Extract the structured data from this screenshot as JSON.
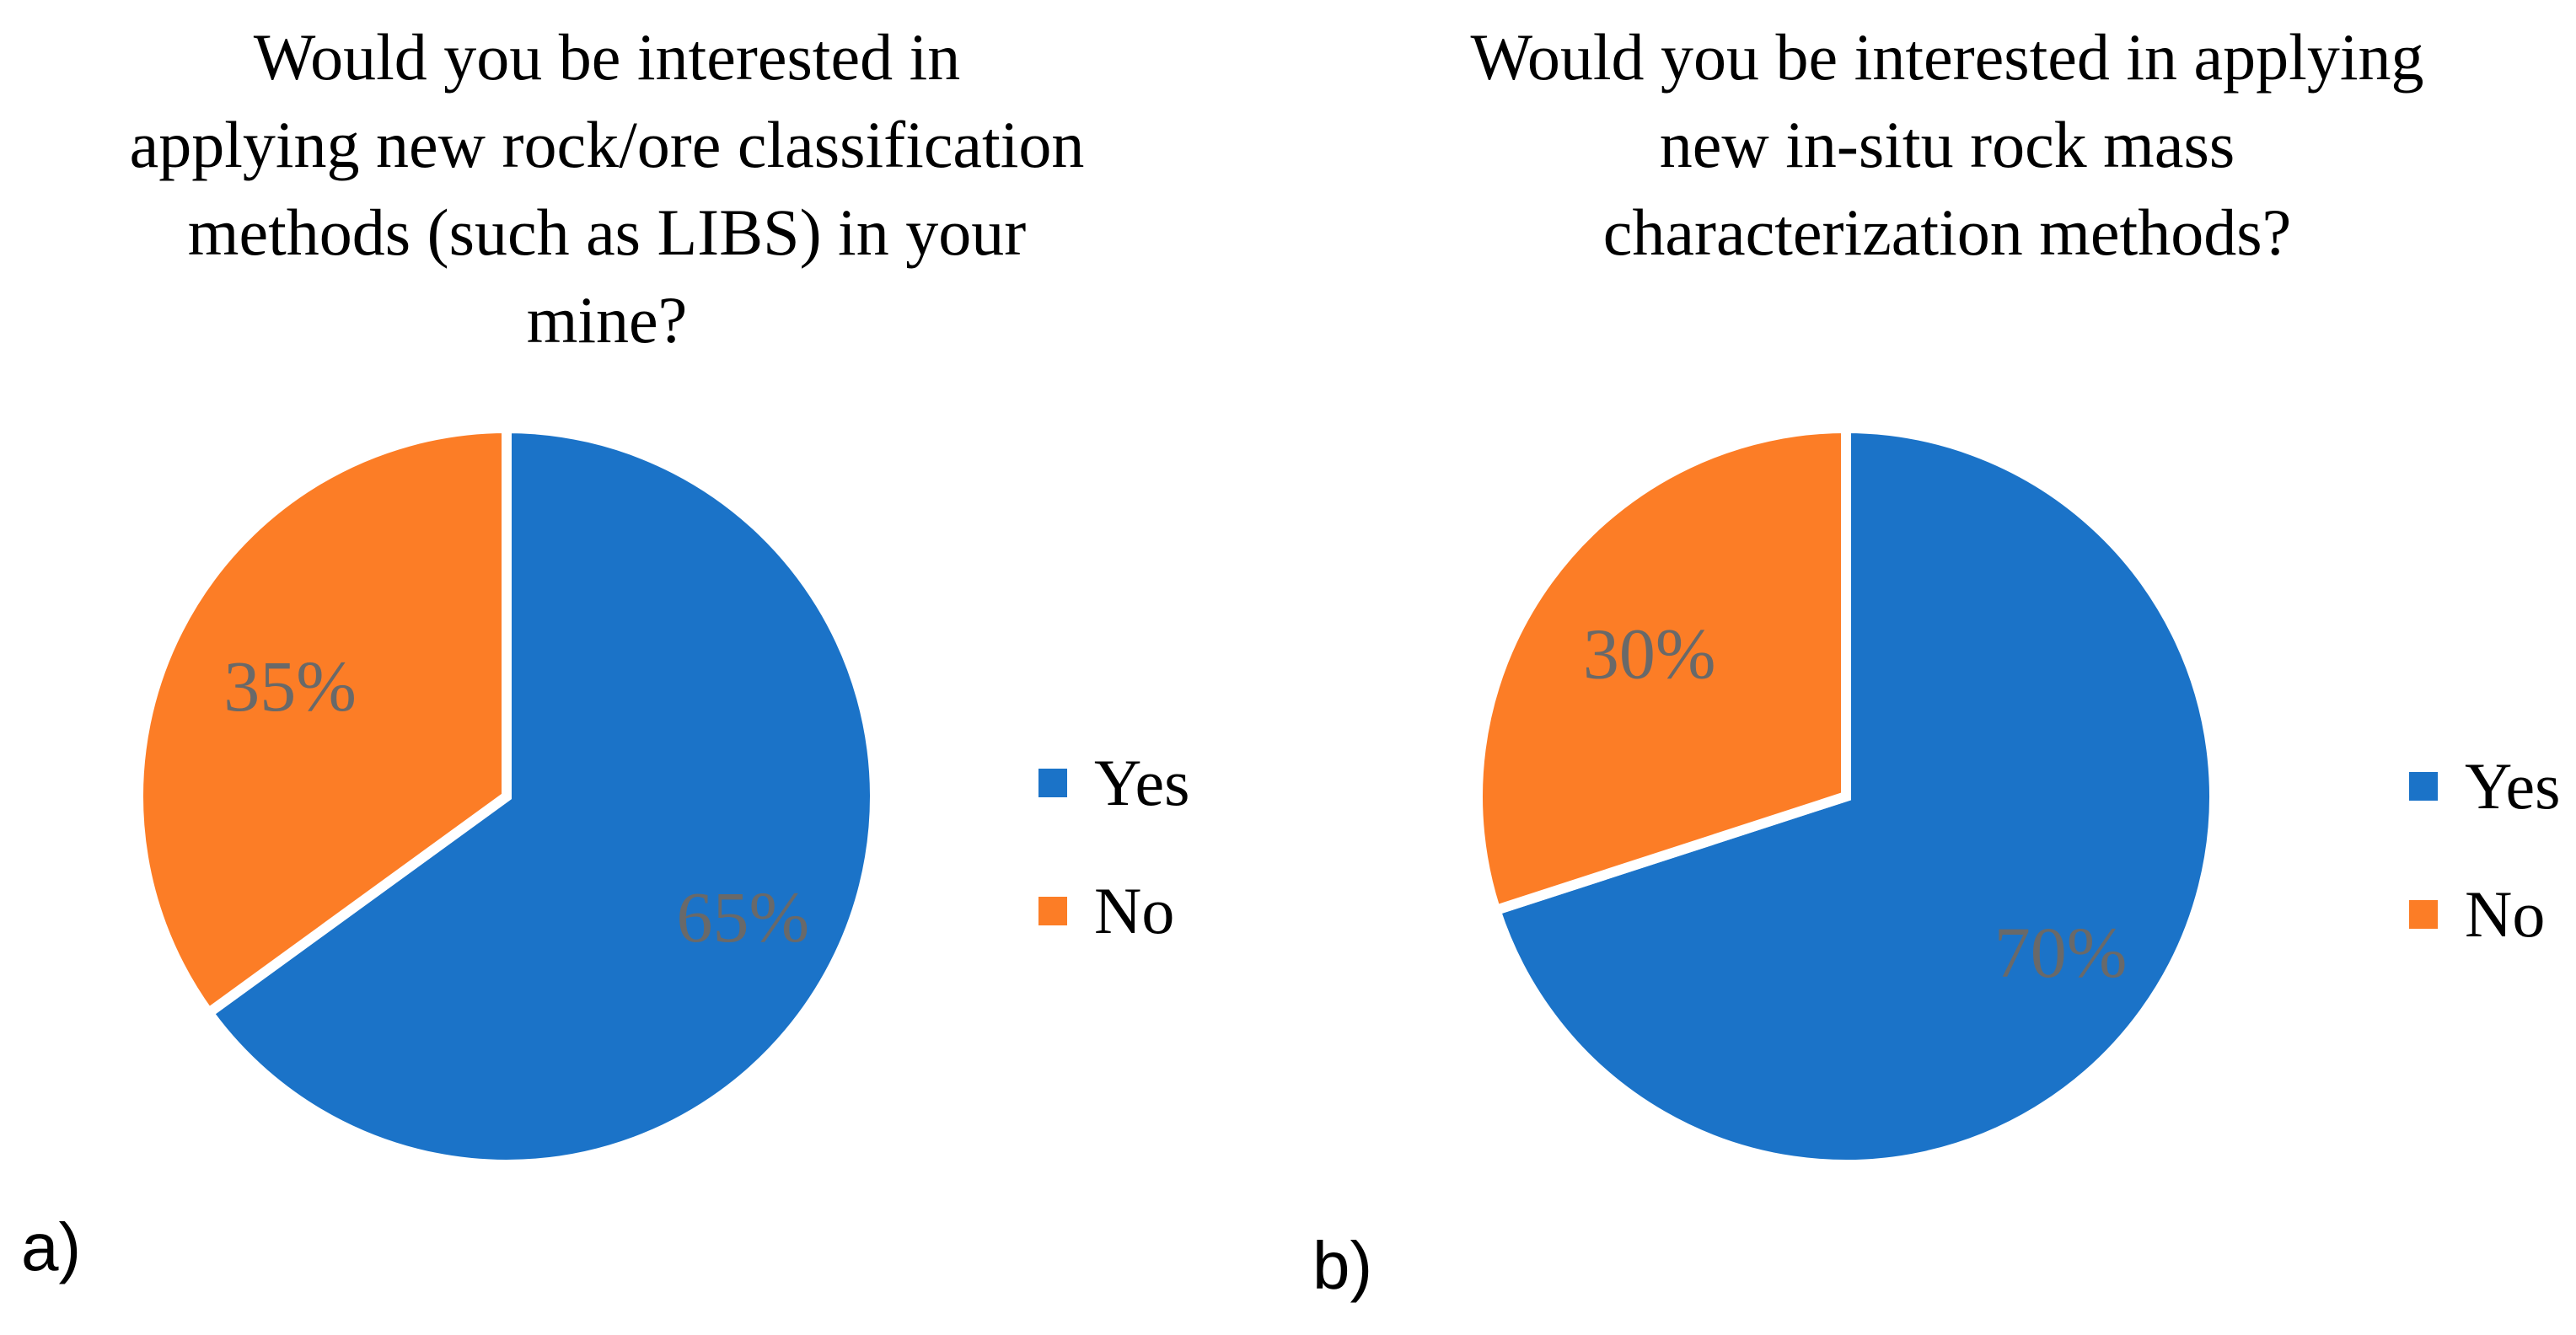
{
  "panels": {
    "a": "a)",
    "b": "b)"
  },
  "colors": {
    "yes_blue": "#1B73C8",
    "no_orange": "#FC7D26",
    "data_label_gray": "#696969",
    "slice_border_white": "#ffffff",
    "title_black": "#000000"
  },
  "legends": [
    {
      "position": "right",
      "items": [
        {
          "label": "Yes",
          "color": "#1B73C8"
        },
        {
          "label": "No",
          "color": "#FC7D26"
        }
      ]
    },
    {
      "position": "right",
      "items": [
        {
          "label": "Yes",
          "color": "#1B73C8"
        },
        {
          "label": "No",
          "color": "#FC7D26"
        }
      ]
    }
  ],
  "chart_data": [
    {
      "type": "pie",
      "title": "Would you be interested in applying new rock/ore classification methods (such as LIBS) in your mine?",
      "title_lines": [
        "Would you be interested in",
        "applying new rock/ore classification",
        "methods (such as LIBS) in your",
        "mine?"
      ],
      "categories": [
        "Yes",
        "No"
      ],
      "values": [
        65,
        35
      ],
      "labels": [
        "65%",
        "35%"
      ],
      "colors": [
        "#1B73C8",
        "#FC7D26"
      ],
      "label_color": "#696969",
      "label_radius": [
        0.72,
        0.66
      ],
      "start_angle_deg": 0,
      "direction": "clockwise",
      "legend_position": "right",
      "panel": "a)"
    },
    {
      "type": "pie",
      "title": "Would you be interested in applying new in-situ rock mass characterization methods?",
      "title_lines": [
        "Would you be interested in applying",
        "new in-situ rock mass",
        "characterization methods?"
      ],
      "categories": [
        "Yes",
        "No"
      ],
      "values": [
        70,
        30
      ],
      "labels": [
        "70%",
        "30%"
      ],
      "colors": [
        "#1B73C8",
        "#FC7D26"
      ],
      "label_color": "#696969",
      "label_radius": [
        0.72,
        0.66
      ],
      "start_angle_deg": 0,
      "direction": "clockwise",
      "legend_position": "right",
      "panel": "b)"
    }
  ]
}
